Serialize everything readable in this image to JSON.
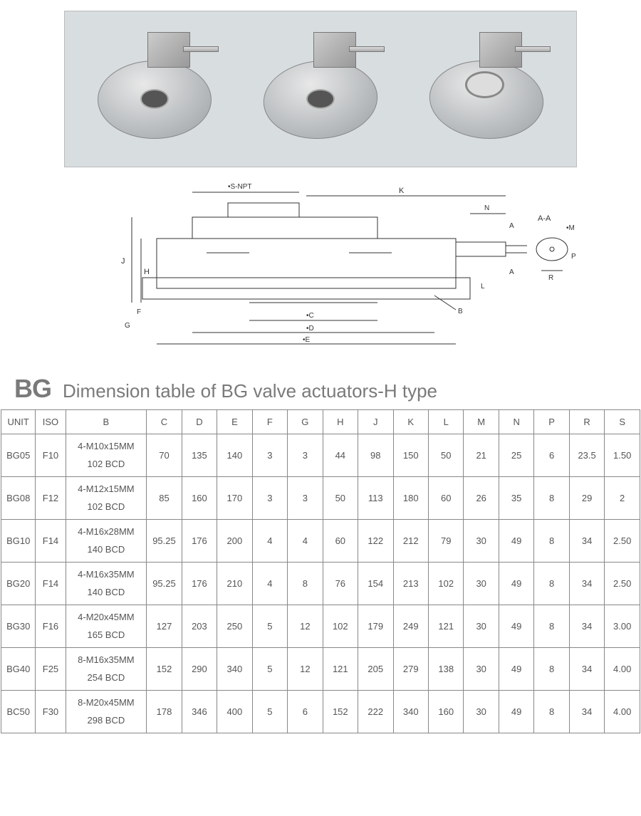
{
  "title_prefix": "BG",
  "title_text": "Dimension table of BG valve actuators-H type",
  "drawing_labels": {
    "s_npt": "•S-NPT",
    "k": "K",
    "n": "N",
    "aa": "A-A",
    "m": "•M",
    "a_top": "A",
    "a_bot": "A",
    "l": "L",
    "b": "B",
    "j": "J",
    "h": "H",
    "f": "F",
    "g": "G",
    "c": "•C",
    "d": "•D",
    "e": "•E",
    "r": "R",
    "p": "P"
  },
  "table": {
    "columns": [
      "UNIT",
      "ISO",
      "B",
      "C",
      "D",
      "E",
      "F",
      "G",
      "H",
      "J",
      "K",
      "L",
      "M",
      "N",
      "P",
      "R",
      "S"
    ],
    "rows": [
      {
        "unit": "BG05",
        "iso": "F10",
        "b1": "4-M10x15MM",
        "b2": "102 BCD",
        "c": "70",
        "d": "135",
        "e": "140",
        "f": "3",
        "g": "3",
        "h": "44",
        "j": "98",
        "k": "150",
        "l": "50",
        "m": "21",
        "n": "25",
        "p": "6",
        "r": "23.5",
        "s": "1.50"
      },
      {
        "unit": "BG08",
        "iso": "F12",
        "b1": "4-M12x15MM",
        "b2": "102 BCD",
        "c": "85",
        "d": "160",
        "e": "170",
        "f": "3",
        "g": "3",
        "h": "50",
        "j": "113",
        "k": "180",
        "l": "60",
        "m": "26",
        "n": "35",
        "p": "8",
        "r": "29",
        "s": "2"
      },
      {
        "unit": "BG10",
        "iso": "F14",
        "b1": "4-M16x28MM",
        "b2": "140 BCD",
        "c": "95.25",
        "d": "176",
        "e": "200",
        "f": "4",
        "g": "4",
        "h": "60",
        "j": "122",
        "k": "212",
        "l": "79",
        "m": "30",
        "n": "49",
        "p": "8",
        "r": "34",
        "s": "2.50"
      },
      {
        "unit": "BG20",
        "iso": "F14",
        "b1": "4-M16x35MM",
        "b2": "140 BCD",
        "c": "95.25",
        "d": "176",
        "e": "210",
        "f": "4",
        "g": "8",
        "h": "76",
        "j": "154",
        "k": "213",
        "l": "102",
        "m": "30",
        "n": "49",
        "p": "8",
        "r": "34",
        "s": "2.50"
      },
      {
        "unit": "BG30",
        "iso": "F16",
        "b1": "4-M20x45MM",
        "b2": "165 BCD",
        "c": "127",
        "d": "203",
        "e": "250",
        "f": "5",
        "g": "12",
        "h": "102",
        "j": "179",
        "k": "249",
        "l": "121",
        "m": "30",
        "n": "49",
        "p": "8",
        "r": "34",
        "s": "3.00"
      },
      {
        "unit": "BG40",
        "iso": "F25",
        "b1": "8-M16x35MM",
        "b2": "254 BCD",
        "c": "152",
        "d": "290",
        "e": "340",
        "f": "5",
        "g": "12",
        "h": "121",
        "j": "205",
        "k": "279",
        "l": "138",
        "m": "30",
        "n": "49",
        "p": "8",
        "r": "34",
        "s": "4.00"
      },
      {
        "unit": "BC50",
        "iso": "F30",
        "b1": "8-M20x45MM",
        "b2": "298 BCD",
        "c": "178",
        "d": "346",
        "e": "400",
        "f": "5",
        "g": "6",
        "h": "152",
        "j": "222",
        "k": "340",
        "l": "160",
        "m": "30",
        "n": "49",
        "p": "8",
        "r": "34",
        "s": "4.00"
      }
    ]
  },
  "colors": {
    "image_bg": "#d8dde0",
    "border": "#888888",
    "text": "#555555",
    "title": "#7a7a7a"
  }
}
